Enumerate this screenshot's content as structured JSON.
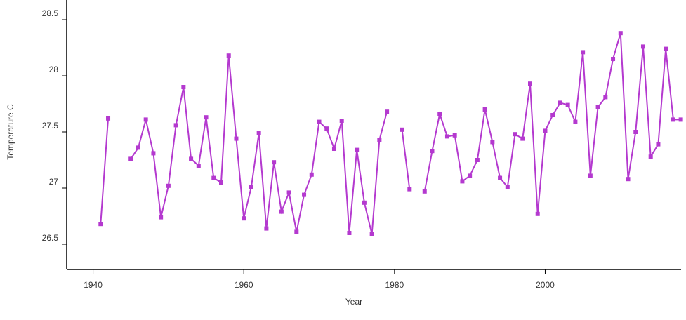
{
  "chart_data": {
    "type": "line",
    "x_label": "Year",
    "y_label": "Temperature C",
    "x": [
      1941,
      1942,
      1943,
      1944,
      1945,
      1946,
      1947,
      1948,
      1949,
      1950,
      1951,
      1952,
      1953,
      1954,
      1955,
      1956,
      1957,
      1958,
      1959,
      1960,
      1961,
      1962,
      1963,
      1964,
      1965,
      1966,
      1967,
      1968,
      1969,
      1970,
      1971,
      1972,
      1973,
      1974,
      1975,
      1976,
      1977,
      1978,
      1979,
      1980,
      1981,
      1982,
      1983,
      1984,
      1985,
      1986,
      1987,
      1988,
      1989,
      1990,
      1991,
      1992,
      1993,
      1994,
      1995,
      1996,
      1997,
      1998,
      1999,
      2000,
      2001,
      2002,
      2003,
      2004,
      2005,
      2006,
      2007,
      2008,
      2009,
      2010,
      2011,
      2012,
      2013,
      2014,
      2015,
      2016,
      2017,
      2018
    ],
    "series": [
      {
        "color": "#b439cf",
        "values": [
          26.68,
          27.62,
          null,
          null,
          27.26,
          27.36,
          27.61,
          27.31,
          26.74,
          27.02,
          27.56,
          27.9,
          27.26,
          27.2,
          27.63,
          27.09,
          27.05,
          28.18,
          27.44,
          26.73,
          27.01,
          27.49,
          26.64,
          27.23,
          26.79,
          26.96,
          26.61,
          26.94,
          27.12,
          27.59,
          27.53,
          27.35,
          27.6,
          26.6,
          27.34,
          26.87,
          26.59,
          27.43,
          27.68,
          null,
          27.52,
          26.99,
          null,
          26.97,
          27.33,
          27.66,
          27.46,
          27.47,
          27.06,
          27.11,
          27.25,
          27.7,
          27.41,
          27.09,
          27.01,
          27.48,
          27.44,
          27.93,
          26.77,
          27.51,
          27.65,
          27.76,
          27.74,
          27.59,
          28.21,
          27.11,
          27.72,
          27.81,
          28.15,
          28.38,
          27.08,
          27.5,
          28.26,
          27.28,
          27.39,
          28.24,
          27.61,
          27.61
        ]
      }
    ],
    "xlim": [
      1936.5,
      2018.5
    ],
    "xticks": [
      1940,
      1960,
      1980,
      2000
    ],
    "ylim": [
      26.275,
      28.675
    ],
    "yticks": [
      26.5,
      27,
      27.5,
      28,
      28.5
    ]
  }
}
